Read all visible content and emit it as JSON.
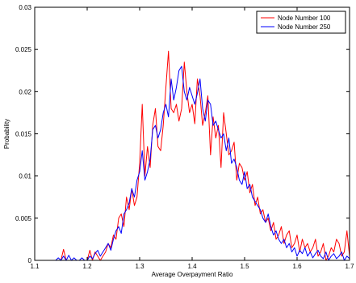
{
  "chart_data": {
    "type": "line",
    "title": "",
    "xlabel": "Average Overpayment Ratio",
    "ylabel": "Probability",
    "xlim": [
      1.1,
      1.7
    ],
    "ylim": [
      0,
      0.03
    ],
    "xticks": [
      1.1,
      1.2,
      1.3,
      1.4,
      1.5,
      1.6,
      1.7
    ],
    "xtick_labels": [
      "1.1",
      "1.2",
      "1.3",
      "1.4",
      "1.5",
      "1.6",
      "1.7"
    ],
    "yticks": [
      0,
      0.005,
      0.01,
      0.015,
      0.02,
      0.025,
      0.03
    ],
    "ytick_labels": [
      "0",
      "0.005",
      "0.01",
      "0.015",
      "0.02",
      "0.025",
      "0.03"
    ],
    "grid": false,
    "legend_position": "top-right",
    "series": [
      {
        "name": "Node Number 100",
        "color": "#ff0000",
        "x": [
          1.1,
          1.15,
          1.155,
          1.16,
          1.2,
          1.205,
          1.21,
          1.215,
          1.22,
          1.225,
          1.23,
          1.235,
          1.24,
          1.245,
          1.25,
          1.255,
          1.26,
          1.265,
          1.27,
          1.275,
          1.28,
          1.285,
          1.29,
          1.295,
          1.3,
          1.305,
          1.31,
          1.315,
          1.32,
          1.325,
          1.33,
          1.335,
          1.34,
          1.345,
          1.35,
          1.355,
          1.36,
          1.365,
          1.37,
          1.375,
          1.38,
          1.385,
          1.39,
          1.395,
          1.4,
          1.405,
          1.41,
          1.415,
          1.42,
          1.425,
          1.43,
          1.435,
          1.44,
          1.445,
          1.45,
          1.455,
          1.46,
          1.465,
          1.47,
          1.475,
          1.48,
          1.485,
          1.49,
          1.495,
          1.5,
          1.505,
          1.51,
          1.515,
          1.52,
          1.525,
          1.53,
          1.535,
          1.54,
          1.545,
          1.55,
          1.555,
          1.56,
          1.565,
          1.57,
          1.575,
          1.58,
          1.585,
          1.59,
          1.595,
          1.6,
          1.605,
          1.61,
          1.615,
          1.62,
          1.625,
          1.63,
          1.635,
          1.64,
          1.645,
          1.65,
          1.655,
          1.66,
          1.665,
          1.67,
          1.675,
          1.68,
          1.685,
          1.69,
          1.695,
          1.7
        ],
        "values": [
          0,
          0,
          0.0013,
          0,
          0,
          0.0012,
          0,
          0.001,
          0.0005,
          0,
          0.0005,
          0.001,
          0.002,
          0.0015,
          0.003,
          0.0025,
          0.005,
          0.0055,
          0.004,
          0.0075,
          0.006,
          0.0085,
          0.0065,
          0.0075,
          0.0115,
          0.0185,
          0.01,
          0.0135,
          0.011,
          0.016,
          0.018,
          0.0135,
          0.013,
          0.016,
          0.0205,
          0.0248,
          0.018,
          0.0175,
          0.0185,
          0.0165,
          0.018,
          0.0235,
          0.02,
          0.0175,
          0.0185,
          0.0162,
          0.0215,
          0.0195,
          0.016,
          0.0175,
          0.0195,
          0.0125,
          0.017,
          0.0145,
          0.016,
          0.011,
          0.0175,
          0.015,
          0.0125,
          0.013,
          0.014,
          0.0095,
          0.0115,
          0.011,
          0.0095,
          0.0105,
          0.008,
          0.009,
          0.0065,
          0.0075,
          0.0055,
          0.006,
          0.0045,
          0.005,
          0.0035,
          0.0045,
          0.0025,
          0.003,
          0.004,
          0.002,
          0.003,
          0.0035,
          0.0015,
          0.002,
          0.003,
          0.001,
          0.0025,
          0.0015,
          0.002,
          0.001,
          0.0015,
          0.0025,
          0.0005,
          0.001,
          0.002,
          0,
          0.0005,
          0.0015,
          0.001,
          0.0025,
          0.002,
          0.0005,
          0.001,
          0.0035,
          0.0005
        ]
      },
      {
        "name": "Node Number 250",
        "color": "#0000ff",
        "x": [
          1.1,
          1.14,
          1.145,
          1.15,
          1.155,
          1.16,
          1.165,
          1.17,
          1.175,
          1.18,
          1.185,
          1.19,
          1.195,
          1.2,
          1.205,
          1.21,
          1.215,
          1.22,
          1.225,
          1.23,
          1.235,
          1.24,
          1.245,
          1.25,
          1.255,
          1.26,
          1.265,
          1.27,
          1.275,
          1.28,
          1.285,
          1.29,
          1.295,
          1.3,
          1.305,
          1.31,
          1.315,
          1.32,
          1.325,
          1.33,
          1.335,
          1.34,
          1.345,
          1.35,
          1.355,
          1.36,
          1.365,
          1.37,
          1.375,
          1.38,
          1.385,
          1.39,
          1.395,
          1.4,
          1.405,
          1.41,
          1.415,
          1.42,
          1.425,
          1.43,
          1.435,
          1.44,
          1.445,
          1.45,
          1.455,
          1.46,
          1.465,
          1.47,
          1.475,
          1.48,
          1.485,
          1.49,
          1.495,
          1.5,
          1.505,
          1.51,
          1.515,
          1.52,
          1.525,
          1.53,
          1.535,
          1.54,
          1.545,
          1.55,
          1.555,
          1.56,
          1.565,
          1.57,
          1.575,
          1.58,
          1.585,
          1.59,
          1.595,
          1.6,
          1.605,
          1.61,
          1.615,
          1.62,
          1.625,
          1.63,
          1.635,
          1.64,
          1.645,
          1.65,
          1.655,
          1.66,
          1.665,
          1.67,
          1.675,
          1.68,
          1.685,
          1.69,
          1.695,
          1.7
        ],
        "values": [
          0,
          0,
          0.0003,
          0,
          0.0005,
          0,
          0.0006,
          0,
          0.0003,
          0,
          0,
          0.0003,
          0,
          0,
          0.0005,
          0.0002,
          0.0008,
          0.0012,
          0.0005,
          0.001,
          0.0015,
          0.002,
          0.0012,
          0.0025,
          0.0035,
          0.004,
          0.0032,
          0.0055,
          0.006,
          0.0068,
          0.0085,
          0.0075,
          0.0095,
          0.0105,
          0.013,
          0.0095,
          0.0105,
          0.012,
          0.0155,
          0.016,
          0.0145,
          0.0155,
          0.0175,
          0.0185,
          0.017,
          0.0215,
          0.019,
          0.0205,
          0.0225,
          0.023,
          0.02,
          0.019,
          0.0205,
          0.0195,
          0.0185,
          0.0198,
          0.0215,
          0.018,
          0.0165,
          0.019,
          0.0185,
          0.016,
          0.0165,
          0.0155,
          0.0145,
          0.015,
          0.013,
          0.0145,
          0.0115,
          0.012,
          0.011,
          0.0095,
          0.009,
          0.0105,
          0.0085,
          0.009,
          0.0075,
          0.007,
          0.0065,
          0.006,
          0.005,
          0.0045,
          0.0055,
          0.004,
          0.003,
          0.0035,
          0.0025,
          0.002,
          0.0025,
          0.0015,
          0.002,
          0.001,
          0.0015,
          0.0005,
          0.0012,
          0.0008,
          0.0015,
          0.0005,
          0.001,
          0.0003,
          0.0008,
          0.0012,
          0.0005,
          0.0002,
          0.001,
          0,
          0.0005,
          0.0008,
          0.0002,
          0.0005,
          0.001,
          0,
          0.0005,
          0.0002
        ]
      }
    ]
  }
}
